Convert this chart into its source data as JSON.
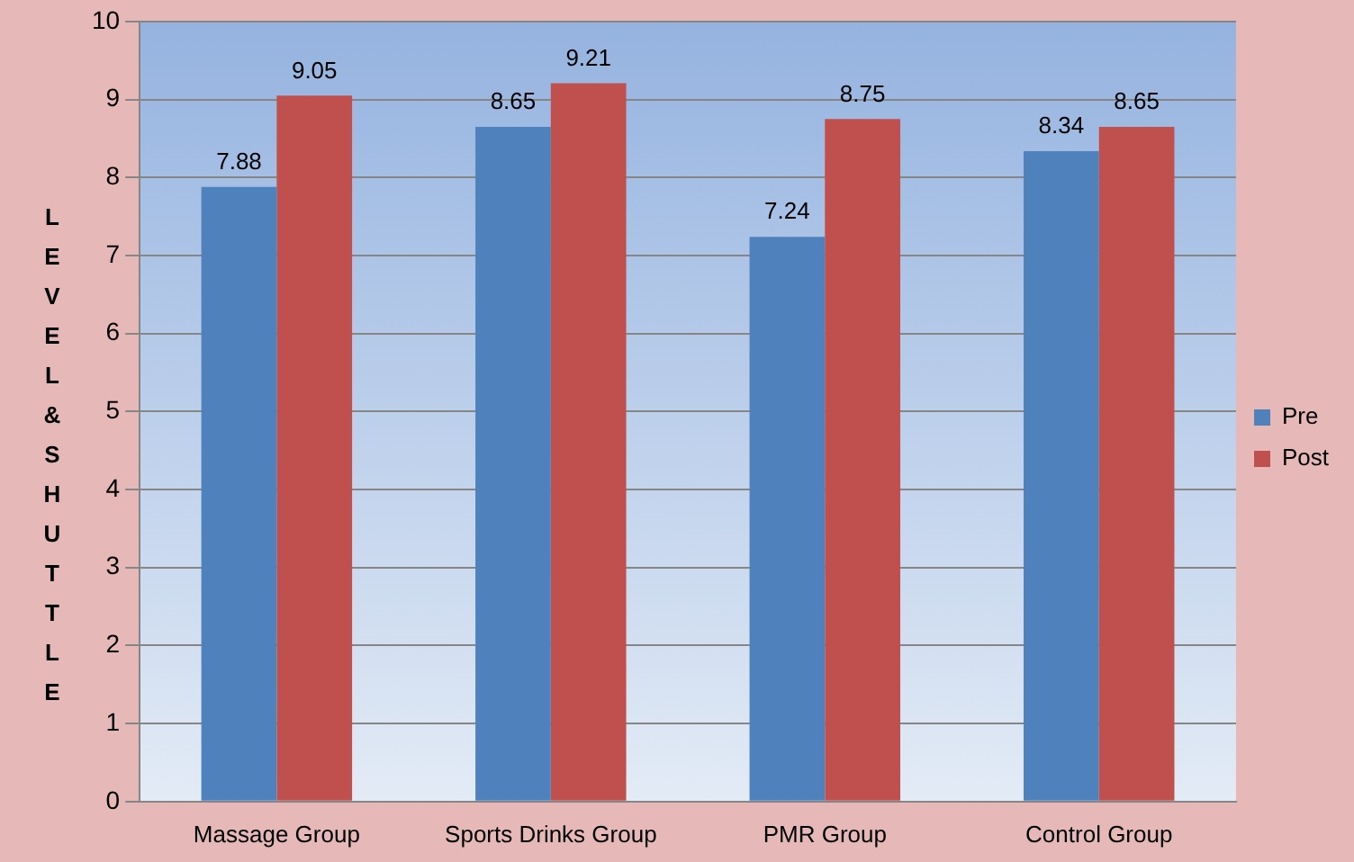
{
  "chart_data": {
    "type": "bar",
    "ylabel": "LEVEL&SHUTTLE",
    "categories": [
      "Massage Group",
      "Sports Drinks Group",
      "PMR Group",
      "Control Group"
    ],
    "series": [
      {
        "name": "Pre",
        "color": "#4f81bd",
        "values": [
          7.88,
          8.65,
          7.24,
          8.34
        ]
      },
      {
        "name": "Post",
        "color": "#c0504d",
        "values": [
          9.05,
          9.21,
          8.75,
          8.65
        ]
      }
    ],
    "ylim": [
      0,
      10
    ],
    "yticks": [
      0,
      1,
      2,
      3,
      4,
      5,
      6,
      7,
      8,
      9,
      10
    ],
    "grid": "y",
    "legend": "right",
    "data_labels": true
  }
}
